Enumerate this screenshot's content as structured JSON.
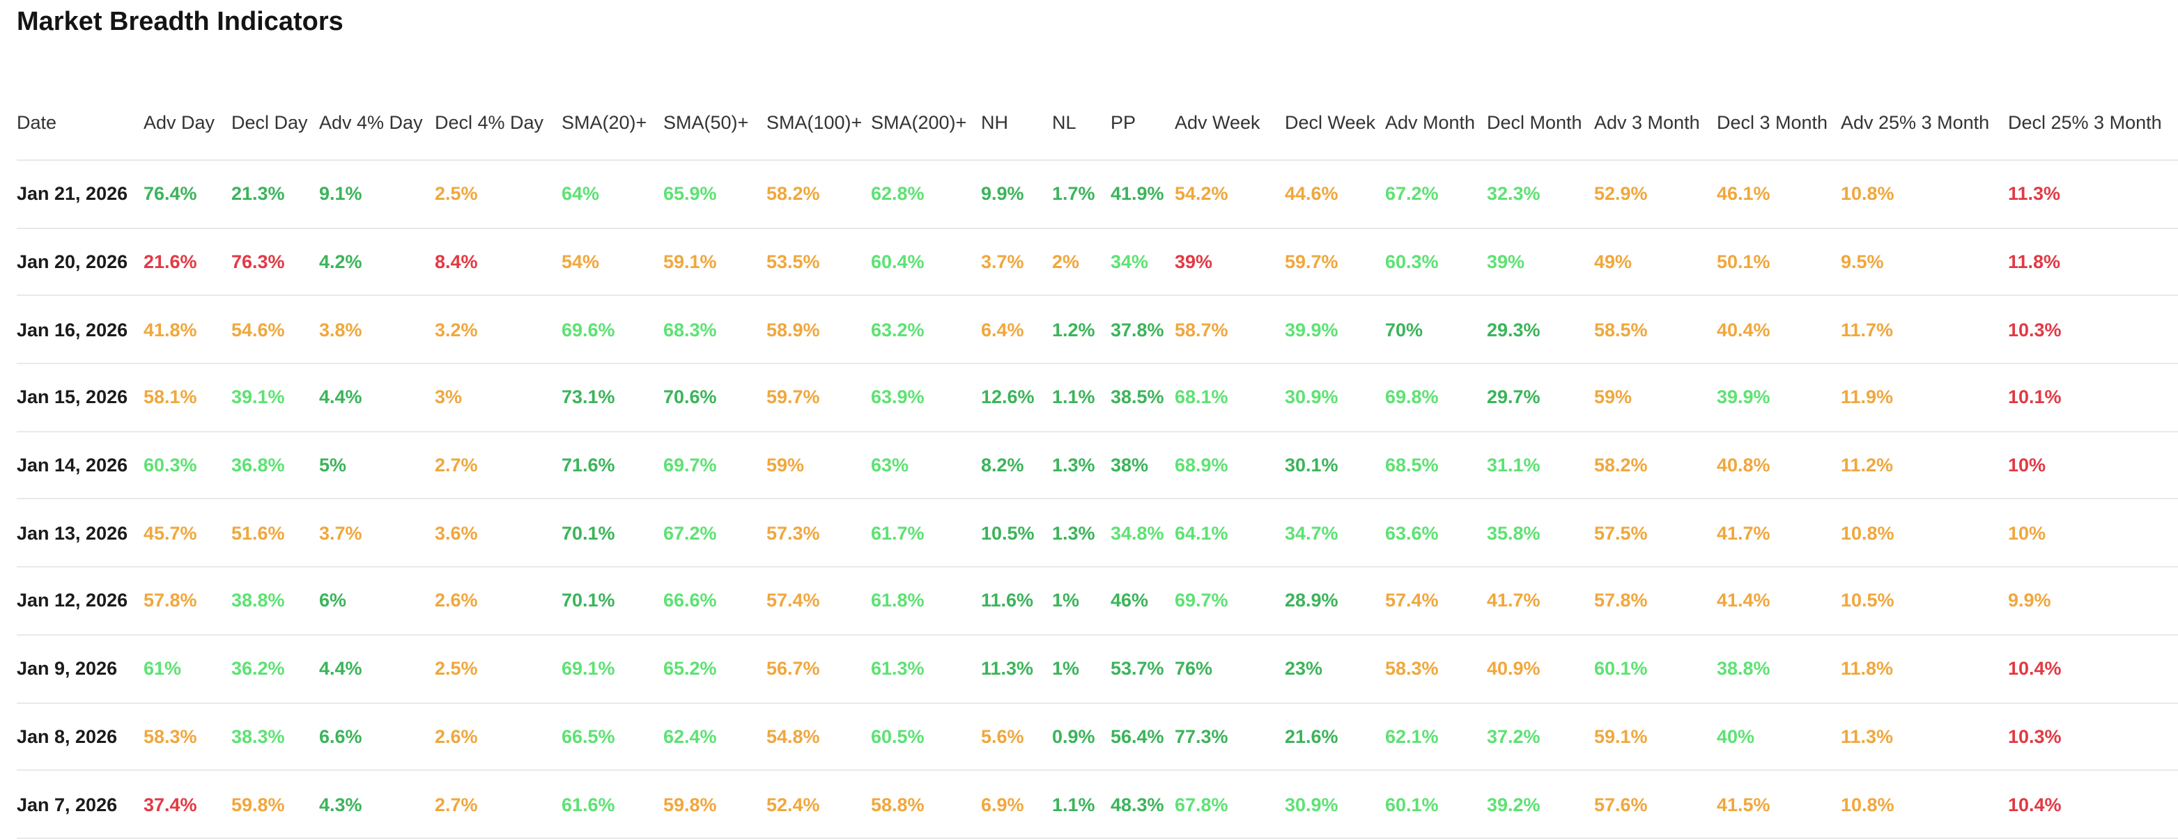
{
  "title": "Market Breadth Indicators",
  "colors": {
    "green": "#3bb45a",
    "light_green": "#5de273",
    "orange": "#f0a73d",
    "red": "#e23944",
    "date_text": "#1b1b1b",
    "header_text": "#333333",
    "divider": "#e9e9e9"
  },
  "table": {
    "columns": [
      "Date",
      "Adv Day",
      "Decl Day",
      "Adv 4% Day",
      "Decl 4% Day",
      "SMA(20)+",
      "SMA(50)+",
      "SMA(100)+",
      "SMA(200)+",
      "NH",
      "NL",
      "PP",
      "Adv Week",
      "Decl Week",
      "Adv Month",
      "Decl Month",
      "Adv 3 Month",
      "Decl 3 Month",
      "Adv 25% 3 Month",
      "Decl 25% 3 Month"
    ],
    "color_classes": {
      "g": "green",
      "lg": "light_green",
      "o": "orange",
      "r": "red"
    },
    "rows": [
      {
        "date": "Jan 21, 2026",
        "cells": [
          [
            "76.4%",
            "g"
          ],
          [
            "21.3%",
            "g"
          ],
          [
            "9.1%",
            "g"
          ],
          [
            "2.5%",
            "o"
          ],
          [
            "64%",
            "lg"
          ],
          [
            "65.9%",
            "lg"
          ],
          [
            "58.2%",
            "o"
          ],
          [
            "62.8%",
            "lg"
          ],
          [
            "9.9%",
            "g"
          ],
          [
            "1.7%",
            "g"
          ],
          [
            "41.9%",
            "g"
          ],
          [
            "54.2%",
            "o"
          ],
          [
            "44.6%",
            "o"
          ],
          [
            "67.2%",
            "lg"
          ],
          [
            "32.3%",
            "lg"
          ],
          [
            "52.9%",
            "o"
          ],
          [
            "46.1%",
            "o"
          ],
          [
            "10.8%",
            "o"
          ],
          [
            "11.3%",
            "r"
          ]
        ]
      },
      {
        "date": "Jan 20, 2026",
        "cells": [
          [
            "21.6%",
            "r"
          ],
          [
            "76.3%",
            "r"
          ],
          [
            "4.2%",
            "g"
          ],
          [
            "8.4%",
            "r"
          ],
          [
            "54%",
            "o"
          ],
          [
            "59.1%",
            "o"
          ],
          [
            "53.5%",
            "o"
          ],
          [
            "60.4%",
            "lg"
          ],
          [
            "3.7%",
            "o"
          ],
          [
            "2%",
            "o"
          ],
          [
            "34%",
            "lg"
          ],
          [
            "39%",
            "r"
          ],
          [
            "59.7%",
            "o"
          ],
          [
            "60.3%",
            "lg"
          ],
          [
            "39%",
            "lg"
          ],
          [
            "49%",
            "o"
          ],
          [
            "50.1%",
            "o"
          ],
          [
            "9.5%",
            "o"
          ],
          [
            "11.8%",
            "r"
          ]
        ]
      },
      {
        "date": "Jan 16, 2026",
        "cells": [
          [
            "41.8%",
            "o"
          ],
          [
            "54.6%",
            "o"
          ],
          [
            "3.8%",
            "o"
          ],
          [
            "3.2%",
            "o"
          ],
          [
            "69.6%",
            "lg"
          ],
          [
            "68.3%",
            "lg"
          ],
          [
            "58.9%",
            "o"
          ],
          [
            "63.2%",
            "lg"
          ],
          [
            "6.4%",
            "o"
          ],
          [
            "1.2%",
            "g"
          ],
          [
            "37.8%",
            "g"
          ],
          [
            "58.7%",
            "o"
          ],
          [
            "39.9%",
            "lg"
          ],
          [
            "70%",
            "g"
          ],
          [
            "29.3%",
            "g"
          ],
          [
            "58.5%",
            "o"
          ],
          [
            "40.4%",
            "o"
          ],
          [
            "11.7%",
            "o"
          ],
          [
            "10.3%",
            "r"
          ]
        ]
      },
      {
        "date": "Jan 15, 2026",
        "cells": [
          [
            "58.1%",
            "o"
          ],
          [
            "39.1%",
            "lg"
          ],
          [
            "4.4%",
            "g"
          ],
          [
            "3%",
            "o"
          ],
          [
            "73.1%",
            "g"
          ],
          [
            "70.6%",
            "g"
          ],
          [
            "59.7%",
            "o"
          ],
          [
            "63.9%",
            "lg"
          ],
          [
            "12.6%",
            "g"
          ],
          [
            "1.1%",
            "g"
          ],
          [
            "38.5%",
            "g"
          ],
          [
            "68.1%",
            "lg"
          ],
          [
            "30.9%",
            "lg"
          ],
          [
            "69.8%",
            "lg"
          ],
          [
            "29.7%",
            "g"
          ],
          [
            "59%",
            "o"
          ],
          [
            "39.9%",
            "lg"
          ],
          [
            "11.9%",
            "o"
          ],
          [
            "10.1%",
            "r"
          ]
        ]
      },
      {
        "date": "Jan 14, 2026",
        "cells": [
          [
            "60.3%",
            "lg"
          ],
          [
            "36.8%",
            "lg"
          ],
          [
            "5%",
            "g"
          ],
          [
            "2.7%",
            "o"
          ],
          [
            "71.6%",
            "g"
          ],
          [
            "69.7%",
            "lg"
          ],
          [
            "59%",
            "o"
          ],
          [
            "63%",
            "lg"
          ],
          [
            "8.2%",
            "g"
          ],
          [
            "1.3%",
            "g"
          ],
          [
            "38%",
            "g"
          ],
          [
            "68.9%",
            "lg"
          ],
          [
            "30.1%",
            "g"
          ],
          [
            "68.5%",
            "lg"
          ],
          [
            "31.1%",
            "lg"
          ],
          [
            "58.2%",
            "o"
          ],
          [
            "40.8%",
            "o"
          ],
          [
            "11.2%",
            "o"
          ],
          [
            "10%",
            "r"
          ]
        ]
      },
      {
        "date": "Jan 13, 2026",
        "cells": [
          [
            "45.7%",
            "o"
          ],
          [
            "51.6%",
            "o"
          ],
          [
            "3.7%",
            "o"
          ],
          [
            "3.6%",
            "o"
          ],
          [
            "70.1%",
            "g"
          ],
          [
            "67.2%",
            "lg"
          ],
          [
            "57.3%",
            "o"
          ],
          [
            "61.7%",
            "lg"
          ],
          [
            "10.5%",
            "g"
          ],
          [
            "1.3%",
            "g"
          ],
          [
            "34.8%",
            "lg"
          ],
          [
            "64.1%",
            "lg"
          ],
          [
            "34.7%",
            "lg"
          ],
          [
            "63.6%",
            "lg"
          ],
          [
            "35.8%",
            "lg"
          ],
          [
            "57.5%",
            "o"
          ],
          [
            "41.7%",
            "o"
          ],
          [
            "10.8%",
            "o"
          ],
          [
            "10%",
            "o"
          ]
        ]
      },
      {
        "date": "Jan 12, 2026",
        "cells": [
          [
            "57.8%",
            "o"
          ],
          [
            "38.8%",
            "lg"
          ],
          [
            "6%",
            "g"
          ],
          [
            "2.6%",
            "o"
          ],
          [
            "70.1%",
            "g"
          ],
          [
            "66.6%",
            "lg"
          ],
          [
            "57.4%",
            "o"
          ],
          [
            "61.8%",
            "lg"
          ],
          [
            "11.6%",
            "g"
          ],
          [
            "1%",
            "g"
          ],
          [
            "46%",
            "g"
          ],
          [
            "69.7%",
            "lg"
          ],
          [
            "28.9%",
            "g"
          ],
          [
            "57.4%",
            "o"
          ],
          [
            "41.7%",
            "o"
          ],
          [
            "57.8%",
            "o"
          ],
          [
            "41.4%",
            "o"
          ],
          [
            "10.5%",
            "o"
          ],
          [
            "9.9%",
            "o"
          ]
        ]
      },
      {
        "date": "Jan 9, 2026",
        "cells": [
          [
            "61%",
            "lg"
          ],
          [
            "36.2%",
            "lg"
          ],
          [
            "4.4%",
            "g"
          ],
          [
            "2.5%",
            "o"
          ],
          [
            "69.1%",
            "lg"
          ],
          [
            "65.2%",
            "lg"
          ],
          [
            "56.7%",
            "o"
          ],
          [
            "61.3%",
            "lg"
          ],
          [
            "11.3%",
            "g"
          ],
          [
            "1%",
            "g"
          ],
          [
            "53.7%",
            "g"
          ],
          [
            "76%",
            "g"
          ],
          [
            "23%",
            "g"
          ],
          [
            "58.3%",
            "o"
          ],
          [
            "40.9%",
            "o"
          ],
          [
            "60.1%",
            "lg"
          ],
          [
            "38.8%",
            "lg"
          ],
          [
            "11.8%",
            "o"
          ],
          [
            "10.4%",
            "r"
          ]
        ]
      },
      {
        "date": "Jan 8, 2026",
        "cells": [
          [
            "58.3%",
            "o"
          ],
          [
            "38.3%",
            "lg"
          ],
          [
            "6.6%",
            "g"
          ],
          [
            "2.6%",
            "o"
          ],
          [
            "66.5%",
            "lg"
          ],
          [
            "62.4%",
            "lg"
          ],
          [
            "54.8%",
            "o"
          ],
          [
            "60.5%",
            "lg"
          ],
          [
            "5.6%",
            "o"
          ],
          [
            "0.9%",
            "g"
          ],
          [
            "56.4%",
            "g"
          ],
          [
            "77.3%",
            "g"
          ],
          [
            "21.6%",
            "g"
          ],
          [
            "62.1%",
            "lg"
          ],
          [
            "37.2%",
            "lg"
          ],
          [
            "59.1%",
            "o"
          ],
          [
            "40%",
            "lg"
          ],
          [
            "11.3%",
            "o"
          ],
          [
            "10.3%",
            "r"
          ]
        ]
      },
      {
        "date": "Jan 7, 2026",
        "cells": [
          [
            "37.4%",
            "r"
          ],
          [
            "59.8%",
            "o"
          ],
          [
            "4.3%",
            "g"
          ],
          [
            "2.7%",
            "o"
          ],
          [
            "61.6%",
            "lg"
          ],
          [
            "59.8%",
            "o"
          ],
          [
            "52.4%",
            "o"
          ],
          [
            "58.8%",
            "o"
          ],
          [
            "6.9%",
            "o"
          ],
          [
            "1.1%",
            "g"
          ],
          [
            "48.3%",
            "g"
          ],
          [
            "67.8%",
            "lg"
          ],
          [
            "30.9%",
            "lg"
          ],
          [
            "60.1%",
            "lg"
          ],
          [
            "39.2%",
            "lg"
          ],
          [
            "57.6%",
            "o"
          ],
          [
            "41.5%",
            "o"
          ],
          [
            "10.8%",
            "o"
          ],
          [
            "10.4%",
            "r"
          ]
        ]
      }
    ]
  }
}
